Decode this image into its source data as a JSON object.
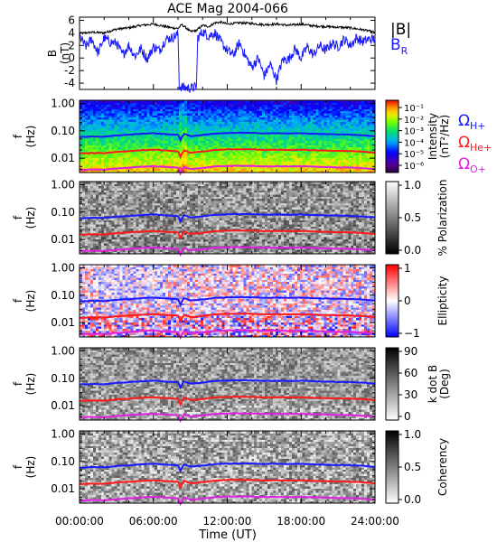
{
  "title": "ACE Mag 2004-066",
  "chart_data": [
    {
      "type": "line",
      "panel": "magnetic-field",
      "ylabel": "B (nT)",
      "ylabel_lines": [
        "B",
        "(nT)"
      ],
      "ylim": [
        -5,
        6.5
      ],
      "yticks": [
        "6",
        "4",
        "2",
        "0",
        "-2",
        "-4"
      ],
      "ytick_values": [
        6,
        4,
        2,
        0,
        -2,
        -4
      ],
      "xlim": [
        0,
        24
      ],
      "series": [
        {
          "name": "|B|",
          "color": "#000000",
          "x": [
            0,
            1,
            2,
            3,
            4,
            5,
            6,
            7,
            7.5,
            8,
            8.3,
            8.6,
            9,
            9.5,
            10,
            10.5,
            11,
            11.5,
            12,
            13,
            14,
            15,
            16,
            17,
            18,
            19,
            20,
            21,
            22,
            23,
            24
          ],
          "values": [
            3.9,
            4.1,
            4.0,
            4.6,
            4.8,
            5.2,
            5.4,
            5.0,
            4.8,
            4.7,
            5.3,
            4.9,
            4.2,
            4.4,
            5.2,
            5.0,
            5.6,
            5.7,
            5.4,
            5.6,
            5.5,
            5.3,
            5.4,
            5.2,
            5.4,
            5.1,
            5.0,
            4.9,
            4.8,
            4.5,
            4.1
          ]
        },
        {
          "name": "B_R",
          "label_main": "B",
          "label_sub": "R",
          "color": "#1a1aff",
          "x": [
            0,
            0.5,
            1,
            1.5,
            2,
            2.5,
            3,
            3.5,
            4,
            4.5,
            5,
            5.5,
            6,
            6.5,
            7,
            7.5,
            8,
            8.1,
            8.5,
            9,
            9.5,
            9.6,
            10,
            10.5,
            11,
            11.5,
            12,
            12.5,
            13,
            13.5,
            14,
            14.5,
            15,
            15.5,
            16,
            16.5,
            17,
            17.5,
            18,
            18.5,
            19,
            19.5,
            20,
            20.5,
            21,
            21.5,
            22,
            22.5,
            23,
            23.5,
            24
          ],
          "values": [
            3.5,
            1.8,
            3.0,
            0.8,
            3.2,
            2.5,
            2.4,
            0.5,
            2.0,
            0.3,
            1.5,
            -0.2,
            1.8,
            1.2,
            3.0,
            3.2,
            3.8,
            -4.5,
            -4.7,
            -4.8,
            -4.6,
            3.2,
            4.2,
            3.5,
            4.0,
            2.5,
            1.2,
            0.5,
            2.4,
            0.2,
            -1.5,
            0.0,
            -2.8,
            -1.0,
            -3.5,
            -0.3,
            -0.2,
            1.5,
            0.0,
            1.8,
            0.5,
            2.0,
            1.2,
            2.4,
            1.8,
            3.0,
            2.0,
            3.2,
            2.6,
            3.0,
            3.0
          ]
        }
      ]
    },
    {
      "type": "heatmap",
      "panel": "intensity",
      "ylabel": "f (Hz)",
      "ylabel_lines": [
        "f",
        "(Hz)"
      ],
      "yticks": [
        "1.00",
        "0.10",
        "0.01"
      ],
      "ylim": [
        0.003,
        1.3
      ],
      "yscale": "log",
      "xlim": [
        0,
        24
      ],
      "colorbar_label": "Intensity (nT²/Hz)",
      "colorbar_label_lines": [
        "Intensity",
        "(nT²/Hz)"
      ],
      "colorbar_ticks": [
        "10⁻¹",
        "10⁻²",
        "10⁻³",
        "10⁻⁴",
        "10⁻⁵",
        "10⁻⁶"
      ],
      "colormap": "rainbow",
      "curve_labels": [
        {
          "main": "Ω",
          "sub": "H+",
          "color": "#1a1aff"
        },
        {
          "main": "Ω",
          "sub": "He+",
          "color": "#ff1a1a"
        },
        {
          "main": "Ω",
          "sub": "O+",
          "color": "#e020e0"
        }
      ]
    },
    {
      "type": "heatmap",
      "panel": "polarization",
      "ylabel": "f (Hz)",
      "ylabel_lines": [
        "f",
        "(Hz)"
      ],
      "yticks": [
        "1.00",
        "0.10",
        "0.01"
      ],
      "yscale": "log",
      "colorbar_label": "% Polarization",
      "colorbar_ticks": [
        "1.0",
        "0.5",
        "0.0"
      ],
      "colormap": "gray"
    },
    {
      "type": "heatmap",
      "panel": "ellipticity",
      "ylabel": "f (Hz)",
      "ylabel_lines": [
        "f",
        "(Hz)"
      ],
      "yticks": [
        "1.00",
        "0.10",
        "0.01"
      ],
      "yscale": "log",
      "colorbar_label": "Ellipticity",
      "colorbar_ticks": [
        "1",
        "0",
        "−1"
      ],
      "colormap": "blue-white-red"
    },
    {
      "type": "heatmap",
      "panel": "k-dot-b",
      "ylabel": "f (Hz)",
      "ylabel_lines": [
        "f",
        "(Hz)"
      ],
      "yticks": [
        "1.00",
        "0.10",
        "0.01"
      ],
      "yscale": "log",
      "colorbar_label": "k dot B (Deg)",
      "colorbar_label_lines": [
        "k dot B",
        "(Deg)"
      ],
      "colorbar_ticks": [
        "90",
        "60",
        "30",
        "0"
      ],
      "colormap": "gray-reversed"
    },
    {
      "type": "heatmap",
      "panel": "coherency",
      "ylabel": "f (Hz)",
      "ylabel_lines": [
        "f",
        "(Hz)"
      ],
      "yticks": [
        "1.00",
        "0.10",
        "0.01"
      ],
      "yscale": "log",
      "colorbar_label": "Coherency",
      "colorbar_ticks": [
        "1.0",
        "0.5",
        "0.0"
      ],
      "colormap": "gray-reversed"
    }
  ],
  "gyro_curves": {
    "x": [
      0,
      1,
      2,
      3,
      4,
      5,
      6,
      7,
      8,
      8.2,
      8.5,
      9,
      10,
      11,
      12,
      13,
      14,
      15,
      16,
      17,
      18,
      19,
      20,
      21,
      22,
      23,
      24
    ],
    "H_plus": [
      0.059,
      0.062,
      0.061,
      0.068,
      0.072,
      0.078,
      0.082,
      0.076,
      0.072,
      0.045,
      0.078,
      0.064,
      0.07,
      0.08,
      0.083,
      0.085,
      0.084,
      0.08,
      0.082,
      0.08,
      0.082,
      0.078,
      0.076,
      0.074,
      0.073,
      0.069,
      0.063
    ],
    "He_plus": [
      0.015,
      0.0155,
      0.0153,
      0.017,
      0.018,
      0.0195,
      0.0205,
      0.019,
      0.018,
      0.011,
      0.0195,
      0.016,
      0.0175,
      0.02,
      0.021,
      0.0213,
      0.021,
      0.02,
      0.0205,
      0.02,
      0.0205,
      0.0195,
      0.019,
      0.0185,
      0.0183,
      0.0173,
      0.016
    ],
    "O_plus": [
      0.0037,
      0.0039,
      0.0038,
      0.0042,
      0.0045,
      0.0049,
      0.0051,
      0.0048,
      0.0045,
      0.0028,
      0.0049,
      0.004,
      0.0044,
      0.005,
      0.0052,
      0.0053,
      0.0052,
      0.005,
      0.0051,
      0.005,
      0.0051,
      0.0049,
      0.0048,
      0.0046,
      0.0046,
      0.0043,
      0.004
    ]
  },
  "xaxis": {
    "ticks": [
      "00:00:00",
      "06:00:00",
      "12:00:00",
      "18:00:00",
      "24:00:00"
    ],
    "tick_values": [
      0,
      6,
      12,
      18,
      24
    ],
    "label": "Time (UT)"
  },
  "colors": {
    "H_plus": "#1a1aff",
    "He_plus": "#ff1a1a",
    "O_plus": "#e020e0",
    "B_R": "#1a1aff",
    "B_mag": "#000000"
  }
}
